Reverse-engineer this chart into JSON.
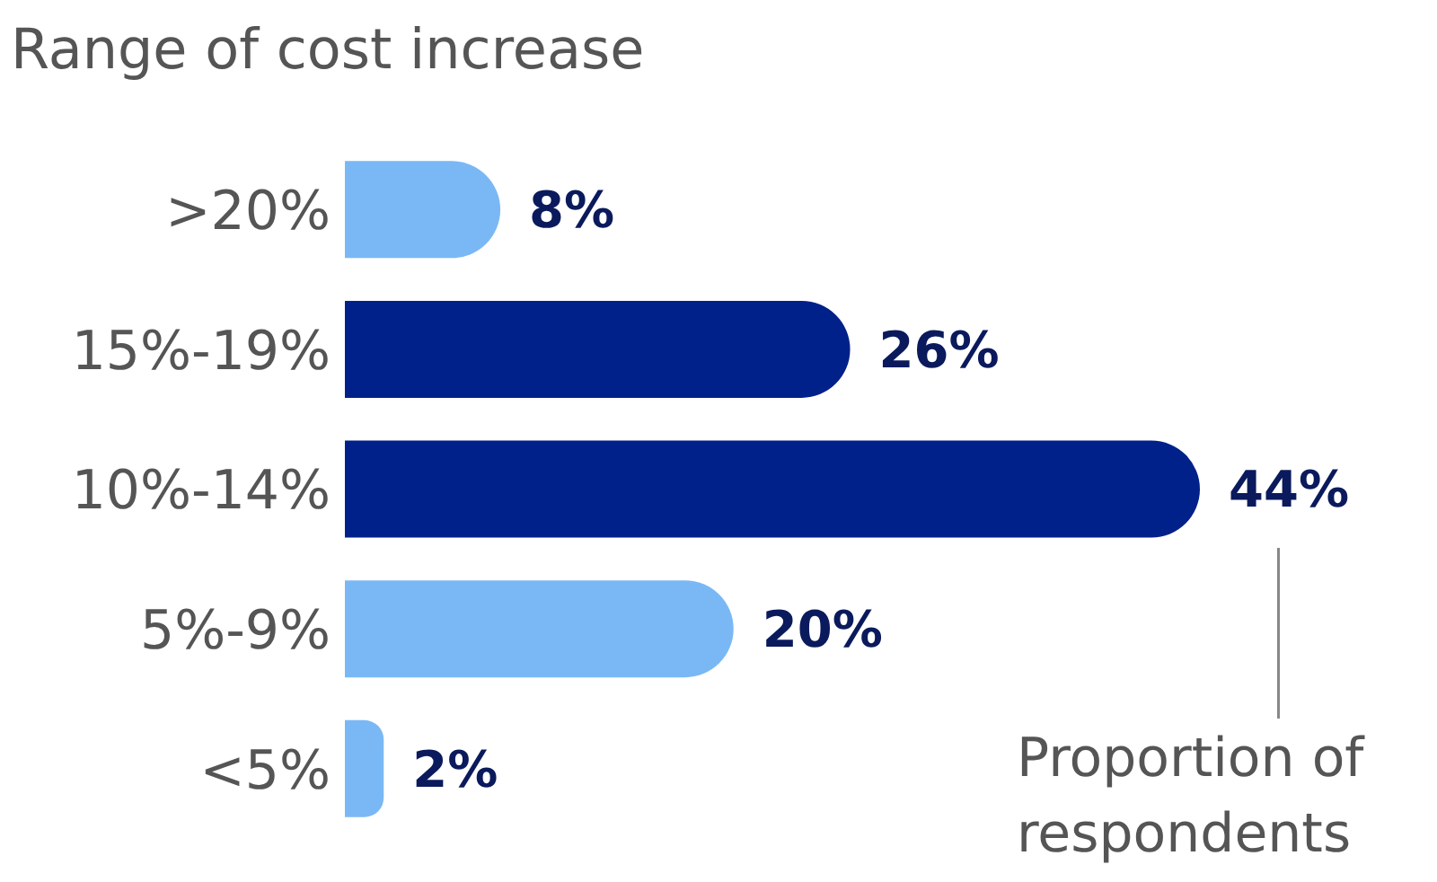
{
  "chart_data": {
    "type": "bar",
    "orientation": "horizontal",
    "ylabel": "Range of cost increase",
    "categories": [
      ">20%",
      "15%-19%",
      "10%-14%",
      "5%-9%",
      "<5%"
    ],
    "values": [
      8,
      26,
      44,
      20,
      2
    ],
    "colors": [
      "#7ab8f5",
      "#00208a",
      "#00208a",
      "#7ab8f5",
      "#7ab8f5"
    ],
    "value_labels": [
      "8%",
      "26%",
      "44%",
      "20%",
      "2%"
    ],
    "annotations": [
      "Proportion of respondents"
    ]
  }
}
